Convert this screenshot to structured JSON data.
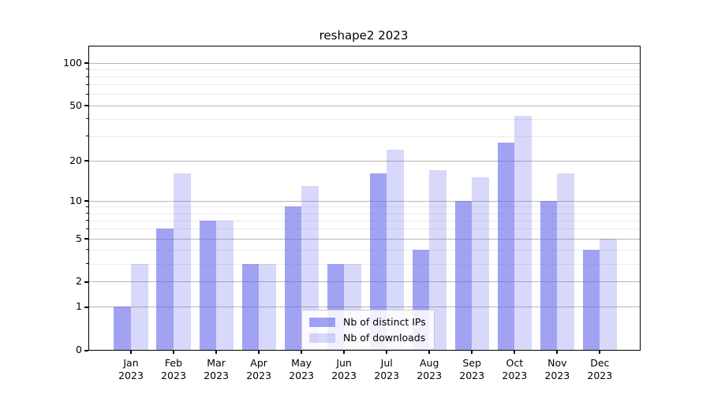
{
  "chart_data": {
    "type": "bar",
    "title": "reshape2 2023",
    "categories": [
      "Jan",
      "Feb",
      "Mar",
      "Apr",
      "May",
      "Jun",
      "Jul",
      "Aug",
      "Sep",
      "Oct",
      "Nov",
      "Dec"
    ],
    "category_year": "2023",
    "series": [
      {
        "name": "Nb of distinct IPs",
        "color": "rgba(100,100,235,0.6)",
        "values": [
          1,
          6,
          7,
          3,
          9,
          3,
          16,
          4,
          10,
          27,
          10,
          4
        ]
      },
      {
        "name": "Nb of downloads",
        "color": "rgba(100,100,235,0.25)",
        "values": [
          3,
          16,
          7,
          3,
          13,
          3,
          24,
          17,
          15,
          42,
          16,
          5
        ]
      }
    ],
    "y_axis": {
      "scale": "log1p",
      "ylim": [
        0,
        130
      ],
      "major_ticks": [
        0,
        1,
        2,
        5,
        10,
        20,
        50,
        100
      ],
      "minor_ticks": [
        3,
        4,
        6,
        7,
        8,
        9,
        30,
        40,
        60,
        70,
        80,
        90
      ]
    },
    "grid": true,
    "legend_position": "lower-center-inside",
    "colors": {
      "major_grid": "#b6b6b6",
      "minor_grid": "#ebebeb",
      "axis": "#000000",
      "text": "#000000",
      "background": "#ffffff"
    }
  }
}
